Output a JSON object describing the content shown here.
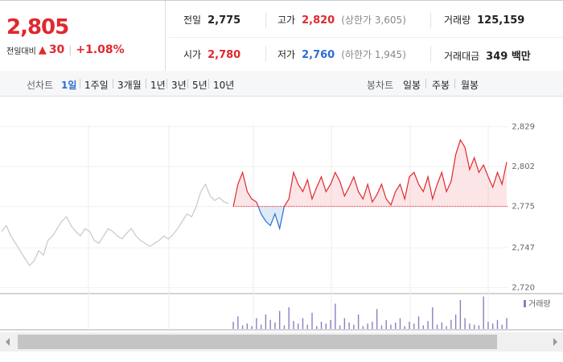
{
  "quote": {
    "price": "2,805",
    "change_label": "전일대비",
    "change": "30",
    "change_rate": "+1.08%"
  },
  "summary": {
    "rows": [
      [
        {
          "label": "전일",
          "value": "2,775"
        },
        {
          "label": "고가",
          "value": "2,820",
          "note": "(상한가 3,605)"
        },
        {
          "label": "거래량",
          "value": "125,159"
        }
      ],
      [
        {
          "label": "시가",
          "value": "2,780"
        },
        {
          "label": "저가",
          "value": "2,760",
          "note": "(하한가 1,945)"
        },
        {
          "label": "거래대금",
          "value": "349 백만"
        }
      ]
    ]
  },
  "toolbar": {
    "line_label": "선차트",
    "line_periods": [
      "1일",
      "1주일",
      "3개월",
      "1년",
      "3년",
      "5년",
      "10년"
    ],
    "candle_label": "봉차트",
    "candle_periods": [
      "일봉",
      "주봉",
      "월봉"
    ]
  },
  "chart_data": {
    "type": "line",
    "ylim": [
      2716,
      2839
    ],
    "yticks": [
      {
        "value": 2720,
        "label": "2,720"
      },
      {
        "value": 2747,
        "label": "2,747"
      },
      {
        "value": 2775,
        "label": "2,775"
      },
      {
        "value": 2802,
        "label": "2,802"
      },
      {
        "value": 2829,
        "label": "2,829"
      }
    ],
    "grid": true,
    "baseline": 2775,
    "up_color": "#e0282f",
    "down_color": "#2b6fd0",
    "series": [
      {
        "color": "#c8c8c8",
        "values": [
          2758,
          2762,
          2755,
          2750,
          2745,
          2740,
          2735,
          2738,
          2745,
          2742,
          2752,
          2755,
          2760,
          2765,
          2768,
          2762,
          2758,
          2755,
          2760,
          2758,
          2752,
          2750,
          2755,
          2760,
          2758,
          2755,
          2753,
          2757,
          2760,
          2755,
          2752,
          2750,
          2748,
          2750,
          2752,
          2755,
          2753,
          2756,
          2760,
          2765,
          2770,
          2768,
          2775,
          2785,
          2790,
          2782,
          2779,
          2781,
          2778,
          2777
        ]
      },
      {
        "color": "#e0282f",
        "values": [
          2775,
          2790,
          2798,
          2785,
          2780,
          2778,
          2770,
          2765,
          2762,
          2770,
          2760,
          2775,
          2780,
          2798,
          2790,
          2785,
          2793,
          2780,
          2788,
          2795,
          2785,
          2790,
          2798,
          2792,
          2782,
          2788,
          2795,
          2785,
          2780,
          2790,
          2778,
          2783,
          2790,
          2780,
          2776,
          2785,
          2790,
          2780,
          2795,
          2798,
          2790,
          2785,
          2795,
          2780,
          2790,
          2798,
          2785,
          2792,
          2810,
          2820,
          2815,
          2800,
          2808,
          2798,
          2803,
          2795,
          2788,
          2798,
          2790,
          2805
        ]
      }
    ],
    "volume": {
      "name": "거래량",
      "color": "#8e7cc3",
      "ylim": [
        0,
        100
      ],
      "values": [
        20,
        35,
        10,
        15,
        8,
        30,
        12,
        40,
        25,
        18,
        50,
        10,
        60,
        22,
        15,
        30,
        12,
        45,
        8,
        20,
        15,
        25,
        70,
        10,
        30,
        18,
        12,
        40,
        8,
        15,
        20,
        55,
        10,
        25,
        12,
        18,
        30,
        8,
        20,
        15,
        35,
        10,
        22,
        60,
        12,
        18,
        8,
        25,
        40,
        80,
        30,
        15,
        12,
        10,
        90,
        20,
        15,
        25,
        12,
        30
      ]
    }
  }
}
